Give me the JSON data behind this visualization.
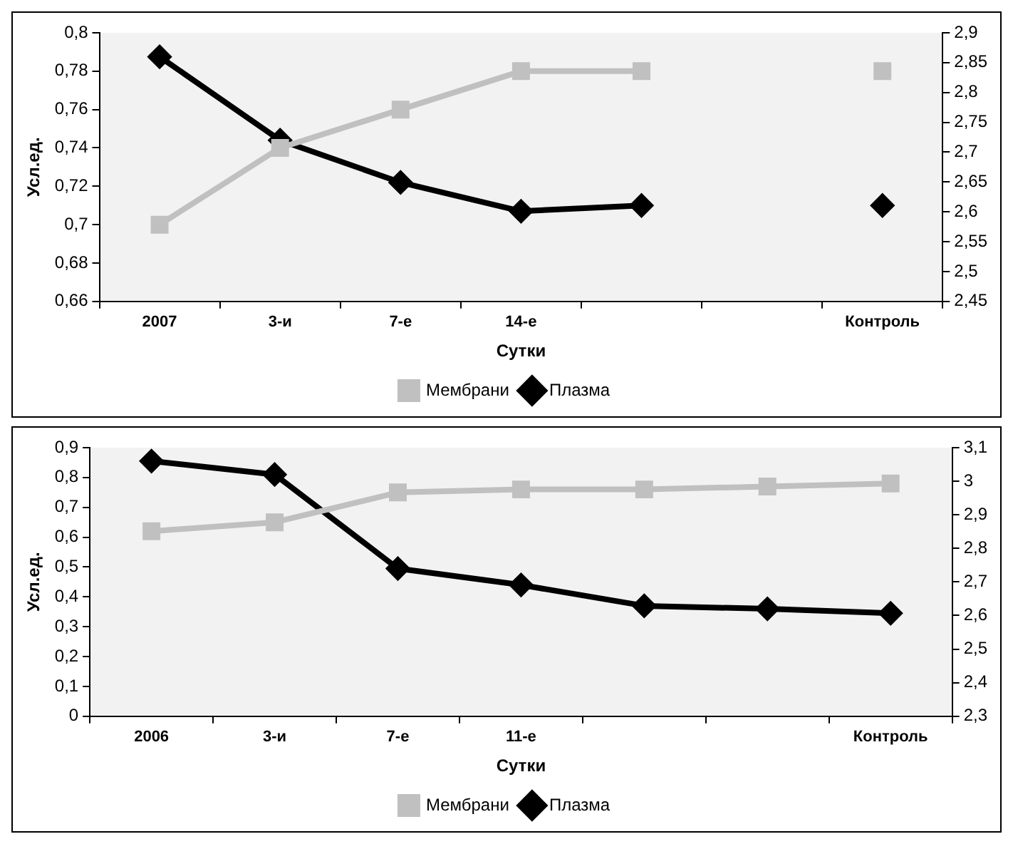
{
  "chart_data": [
    {
      "type": "line",
      "xlabel": "Сутки",
      "ylabel": "Усл.ед.",
      "categories": [
        "2007",
        "3-и",
        "7-е",
        "14-е",
        null,
        null,
        "Контроль"
      ],
      "series": [
        {
          "name": "Мембрани",
          "color": "#c0c0c0",
          "marker": "square",
          "values": [
            0.7,
            0.74,
            0.76,
            0.78,
            0.78,
            null,
            0.78
          ]
        },
        {
          "name": "Плазма",
          "color": "#000000",
          "marker": "diamond",
          "values": [
            0.7875,
            0.744,
            0.722,
            0.707,
            0.71,
            null,
            0.71
          ]
        }
      ],
      "ylim": [
        0.66,
        0.8
      ],
      "yticks": [
        {
          "value": 0.66,
          "label": "0,66"
        },
        {
          "value": 0.68,
          "label": "0,68"
        },
        {
          "value": 0.7,
          "label": "0,7"
        },
        {
          "value": 0.72,
          "label": "0,72"
        },
        {
          "value": 0.74,
          "label": "0,74"
        },
        {
          "value": 0.76,
          "label": "0,76"
        },
        {
          "value": 0.78,
          "label": "0,78"
        },
        {
          "value": 0.8,
          "label": "0,8"
        }
      ],
      "y2lim": [
        2.45,
        2.9
      ],
      "y2ticks": [
        {
          "value": 2.45,
          "label": "2,45"
        },
        {
          "value": 2.5,
          "label": "2,5"
        },
        {
          "value": 2.55,
          "label": "2,55"
        },
        {
          "value": 2.6,
          "label": "2,6"
        },
        {
          "value": 2.65,
          "label": "2,65"
        },
        {
          "value": 2.7,
          "label": "2,7"
        },
        {
          "value": 2.75,
          "label": "2,75"
        },
        {
          "value": 2.8,
          "label": "2,8"
        },
        {
          "value": 2.85,
          "label": "2,85"
        },
        {
          "value": 2.9,
          "label": "2,9"
        }
      ],
      "legend": "bottom"
    },
    {
      "type": "line",
      "xlabel": "Сутки",
      "ylabel": "Усл.ед.",
      "categories": [
        "2006",
        "3-и",
        "7-е",
        "11-е",
        null,
        null,
        "Контроль"
      ],
      "series": [
        {
          "name": "Мембрани",
          "color": "#c0c0c0",
          "marker": "square",
          "values": [
            0.62,
            0.65,
            0.75,
            0.76,
            0.76,
            0.77,
            0.78
          ]
        },
        {
          "name": "Плазма",
          "color": "#000000",
          "marker": "diamond",
          "values": [
            0.855,
            0.81,
            0.495,
            0.44,
            0.37,
            0.36,
            0.345
          ]
        }
      ],
      "ylim": [
        0,
        0.9
      ],
      "yticks": [
        0,
        {
          "value": 0.1,
          "label": "0,1"
        },
        {
          "value": 0.2,
          "label": "0,2"
        },
        {
          "value": 0.3,
          "label": "0,3"
        },
        {
          "value": 0.4,
          "label": "0,4"
        },
        {
          "value": 0.5,
          "label": "0,5"
        },
        {
          "value": 0.6,
          "label": "0,6"
        },
        {
          "value": 0.7,
          "label": "0,7"
        },
        {
          "value": 0.8,
          "label": "0,8"
        },
        {
          "value": 0.9,
          "label": "0,9"
        }
      ],
      "y2lim": [
        2.3,
        3.1
      ],
      "y2ticks": [
        {
          "value": 2.3,
          "label": "2,3"
        },
        {
          "value": 2.4,
          "label": "2,4"
        },
        {
          "value": 2.5,
          "label": "2,5"
        },
        {
          "value": 2.6,
          "label": "2,6"
        },
        {
          "value": 2.7,
          "label": "2,7"
        },
        {
          "value": 2.8,
          "label": "2,8"
        },
        {
          "value": 2.9,
          "label": "2,9"
        },
        3,
        {
          "value": 3.1,
          "label": "3,1"
        }
      ],
      "legend": "bottom"
    }
  ]
}
